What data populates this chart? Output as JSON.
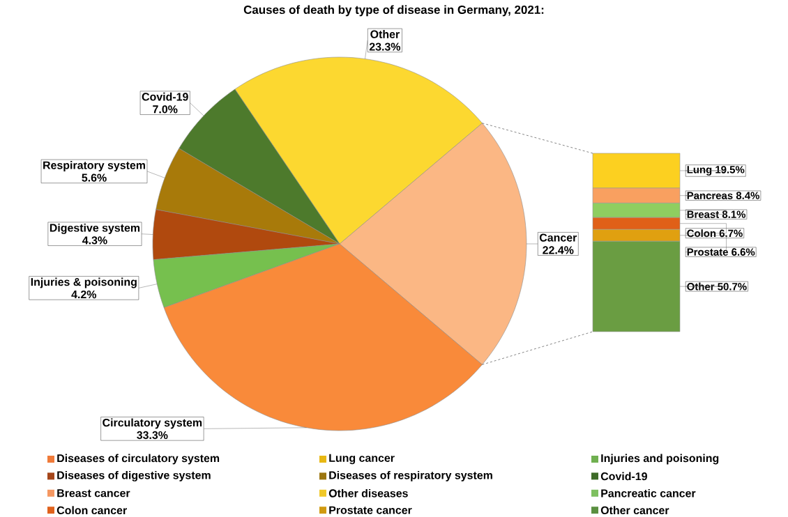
{
  "chart_data": [
    {
      "type": "pie",
      "title": "Causes of death by type of disease in Germany, 2021:",
      "categories": [
        "Cancer",
        "Other",
        "Covid-19",
        "Respiratory system",
        "Digestive system",
        "Injuries & poisoning",
        "Circulatory system"
      ],
      "values": [
        22.4,
        23.3,
        7.0,
        5.6,
        4.3,
        4.2,
        33.3
      ],
      "colors": [
        "#fbb784",
        "#fcd830",
        "#4d7a2c",
        "#a87a0a",
        "#b0490e",
        "#76c04e",
        "#f98a3a"
      ],
      "value_labels": [
        "22.4%",
        "23.3%",
        "7.0%",
        "5.6%",
        "4.3%",
        "4.2%",
        "33.3%"
      ]
    },
    {
      "type": "bar",
      "stacked": true,
      "categories": [
        null
      ],
      "series": [
        {
          "name": "Other",
          "color": "#6a9d42",
          "values": [
            50.7
          ],
          "value_labels": [
            "50.7%"
          ]
        },
        {
          "name": "Prostate",
          "color": "#e0a010",
          "values": [
            6.6
          ],
          "value_labels": [
            "6.6%"
          ]
        },
        {
          "name": "Colon",
          "color": "#e06018",
          "values": [
            6.7
          ],
          "value_labels": [
            "6.7%"
          ]
        },
        {
          "name": "Breast",
          "color": "#8fce60",
          "values": [
            8.1
          ],
          "value_labels": [
            "8.1%"
          ]
        },
        {
          "name": "Pancreas",
          "color": "#f9a060",
          "values": [
            8.4
          ],
          "value_labels": [
            "8.4%"
          ]
        },
        {
          "name": "Lung",
          "color": "#fcd020",
          "values": [
            19.5
          ],
          "value_labels": [
            "19.5%"
          ]
        }
      ]
    },
    {
      "type": "other",
      "categories": [
        "Diseases of circulatory system",
        "Diseases of digestive system",
        "Breast cancer",
        "Colon cancer",
        "Lung cancer",
        "Diseases of respiratory system",
        "Other diseases",
        "Prostate cancer",
        "Injuries and poisoning",
        "Covid-19",
        "Pancreatic cancer",
        "Other cancer"
      ],
      "colors": [
        "#f07b3a",
        "#a5461a",
        "#f59862",
        "#e0621c",
        "#e8b814",
        "#9c7610",
        "#f0c828",
        "#d09a10",
        "#70b050",
        "#3e6b28",
        "#7ec060",
        "#5a9040"
      ]
    }
  ]
}
